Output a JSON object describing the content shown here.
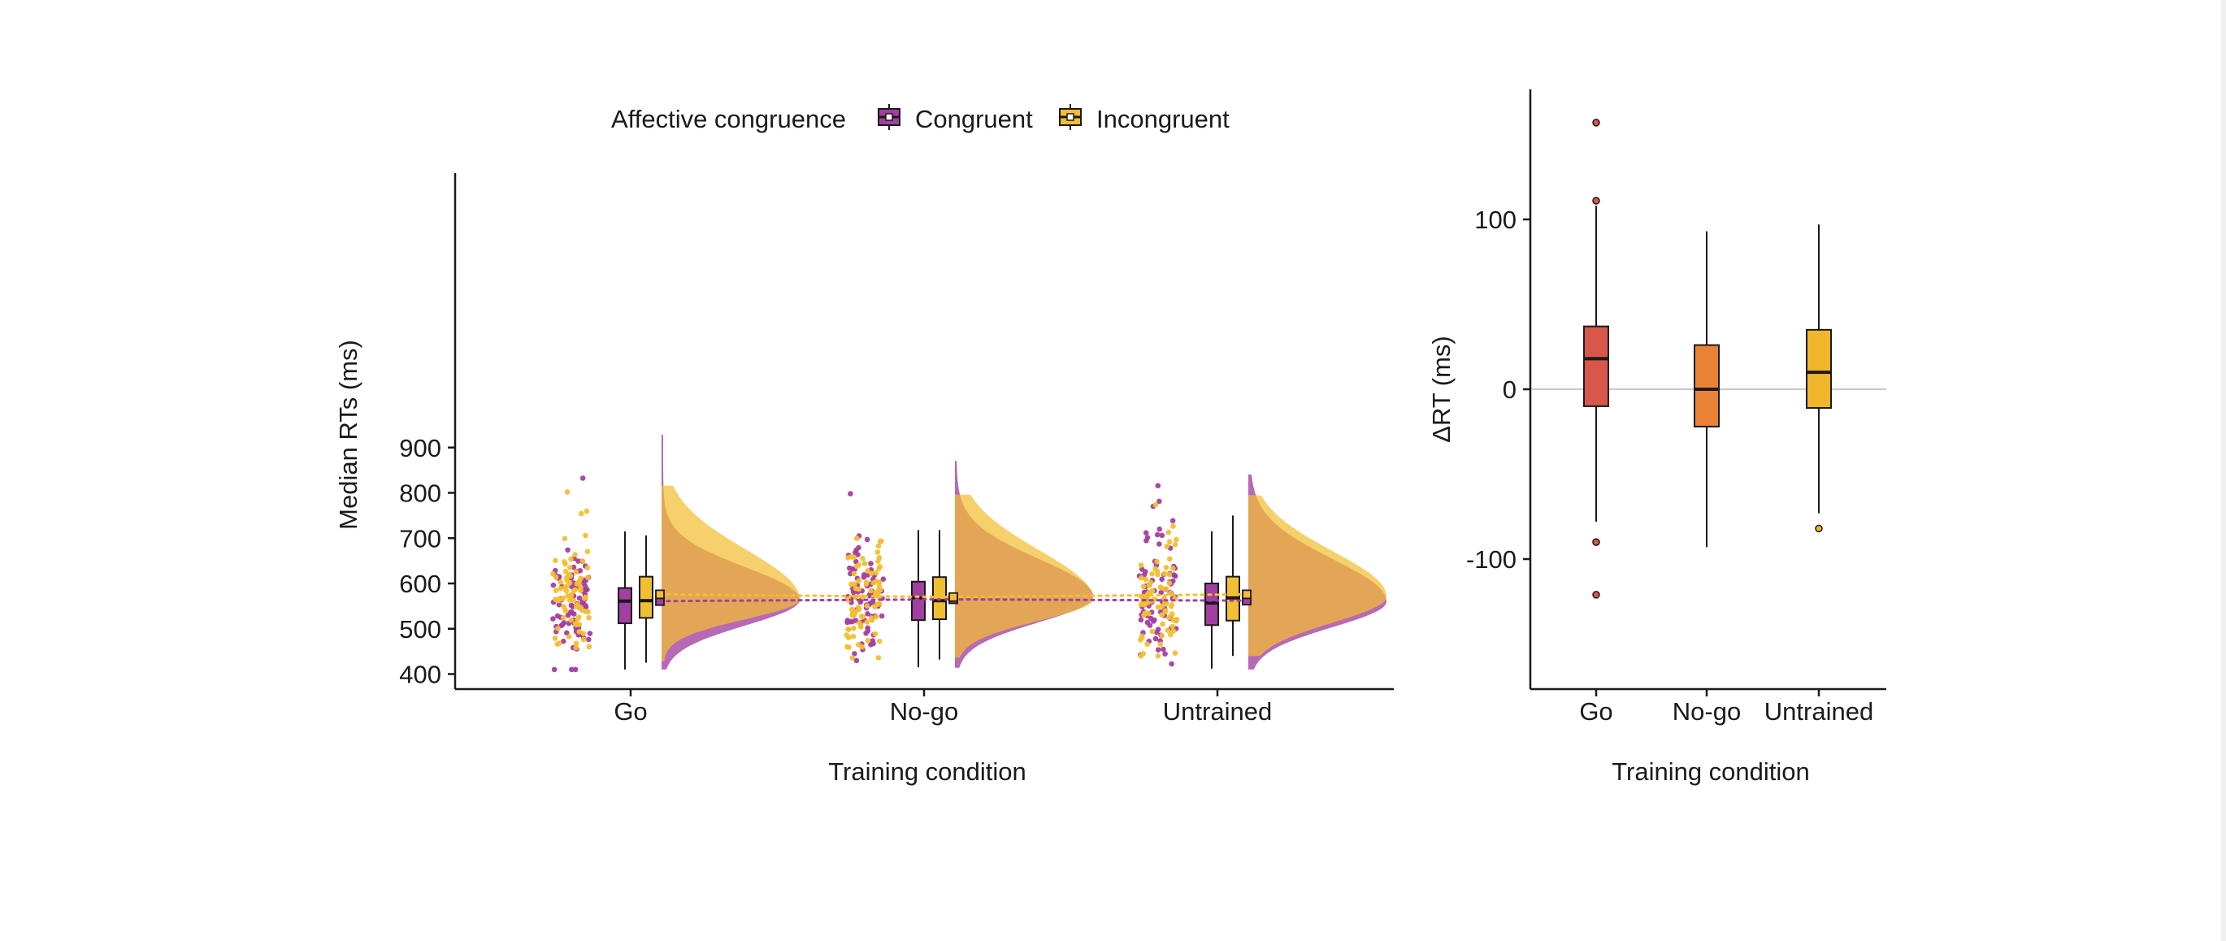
{
  "colors": {
    "congruent": "#A23FA0",
    "incongruent": "#F2BE32",
    "overlap": "#E3A048",
    "go_box": "#D9564A",
    "nogo_box": "#EA8236",
    "untrained_box": "#F2B62C",
    "axis": "#1a1a1a",
    "zero_line": "#c8c8c8"
  },
  "legend": {
    "title": "Affective congruence",
    "items": [
      "Congruent",
      "Incongruent"
    ]
  },
  "chart_data": [
    {
      "type": "raincloud",
      "xlabel": "Training condition",
      "ylabel": "Median RTs (ms)",
      "ylim": [
        385,
        935
      ],
      "yticks": [
        400,
        500,
        600,
        700,
        800,
        900
      ],
      "categories": [
        "Go",
        "No-go",
        "Untrained"
      ],
      "series": [
        {
          "name": "Congruent",
          "boxes": [
            {
              "whisker_low": 410,
              "q1": 512,
              "median": 561,
              "q3": 590,
              "whisker_high": 715
            },
            {
              "whisker_low": 415,
              "q1": 519,
              "median": 568,
              "q3": 604,
              "whisker_high": 718
            },
            {
              "whisker_low": 412,
              "q1": 508,
              "median": 557,
              "q3": 600,
              "whisker_high": 715
            }
          ],
          "means": [
            561,
            565,
            562
          ],
          "density_ranges": [
            [
              410,
              928
            ],
            [
              414,
              871
            ],
            [
              410,
              841
            ]
          ]
        },
        {
          "name": "Incongruent",
          "boxes": [
            {
              "whisker_low": 425,
              "q1": 524,
              "median": 562,
              "q3": 615,
              "whisker_high": 706
            },
            {
              "whisker_low": 432,
              "q1": 521,
              "median": 562,
              "q3": 614,
              "whisker_high": 718
            },
            {
              "whisker_low": 440,
              "q1": 518,
              "median": 568,
              "q3": 615,
              "whisker_high": 750
            }
          ],
          "means": [
            576,
            570,
            576
          ],
          "density_ranges": [
            [
              428,
              816
            ],
            [
              436,
              796
            ],
            [
              440,
              795
            ]
          ]
        }
      ]
    },
    {
      "type": "box",
      "xlabel": "Training condition",
      "ylabel": "ΔRT (ms)",
      "ylim": [
        -175,
        175
      ],
      "yticks": [
        -100,
        0,
        100
      ],
      "categories": [
        "Go",
        "No-go",
        "Untrained"
      ],
      "boxes": [
        {
          "whisker_low": -78,
          "q1": -10,
          "median": 18,
          "q3": 37,
          "whisker_high": 108,
          "outliers": [
            157,
            111,
            -90,
            -121
          ]
        },
        {
          "whisker_low": -93,
          "q1": -22,
          "median": 0,
          "q3": 26,
          "whisker_high": 93,
          "outliers": []
        },
        {
          "whisker_low": -73,
          "q1": -11,
          "median": 10,
          "q3": 35,
          "whisker_high": 97,
          "outliers": [
            -82
          ]
        }
      ]
    }
  ]
}
